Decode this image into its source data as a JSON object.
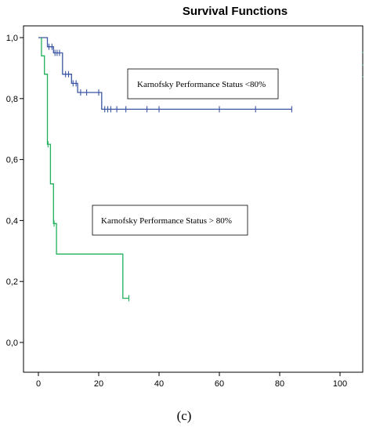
{
  "chart_data": {
    "type": "line",
    "title": "Survival Functions",
    "xlabel": "",
    "ylabel": "",
    "xlim": [
      0,
      100
    ],
    "ylim": [
      0,
      1
    ],
    "x_ticks": [
      "0",
      "20",
      "40",
      "60",
      "80",
      "100"
    ],
    "y_ticks": [
      "0,0",
      "0,2",
      "0,4",
      "0,6",
      "0,8",
      "1,0"
    ],
    "grid": false,
    "series": [
      {
        "name": "Karnofsky Performance Status <80%",
        "color": "#3a55a4",
        "step_points": [
          [
            0,
            1.0
          ],
          [
            3,
            1.0
          ],
          [
            3,
            0.97
          ],
          [
            5,
            0.97
          ],
          [
            5,
            0.95
          ],
          [
            8,
            0.95
          ],
          [
            8,
            0.88
          ],
          [
            11,
            0.88
          ],
          [
            11,
            0.85
          ],
          [
            13,
            0.85
          ],
          [
            13,
            0.82
          ],
          [
            21,
            0.82
          ],
          [
            21,
            0.765
          ],
          [
            84,
            0.765
          ]
        ],
        "censor_x": [
          3.5,
          4.5,
          5.5,
          6.2,
          7,
          9,
          10,
          11.5,
          12.5,
          14,
          16,
          20,
          22,
          23,
          24,
          26,
          29,
          36,
          40,
          60,
          72,
          84
        ]
      },
      {
        "name": "Karnofsky Performance Status > 80%",
        "color": "#1fb05a",
        "step_points": [
          [
            1,
            1.0
          ],
          [
            1,
            0.94
          ],
          [
            2,
            0.94
          ],
          [
            2,
            0.88
          ],
          [
            3,
            0.88
          ],
          [
            3,
            0.65
          ],
          [
            4,
            0.65
          ],
          [
            4,
            0.52
          ],
          [
            5,
            0.52
          ],
          [
            5,
            0.39
          ],
          [
            6,
            0.39
          ],
          [
            6,
            0.29
          ],
          [
            28,
            0.29
          ],
          [
            28,
            0.145
          ],
          [
            30,
            0.145
          ]
        ],
        "censor_x": [
          3.2,
          5.2,
          30
        ]
      }
    ],
    "annotations": [
      {
        "text": "Karnofsky Performance Status <80%",
        "series": 0
      },
      {
        "text": "Karnofsky Performance Status > 80%",
        "series": 1
      }
    ],
    "panel_label": "(c)"
  }
}
